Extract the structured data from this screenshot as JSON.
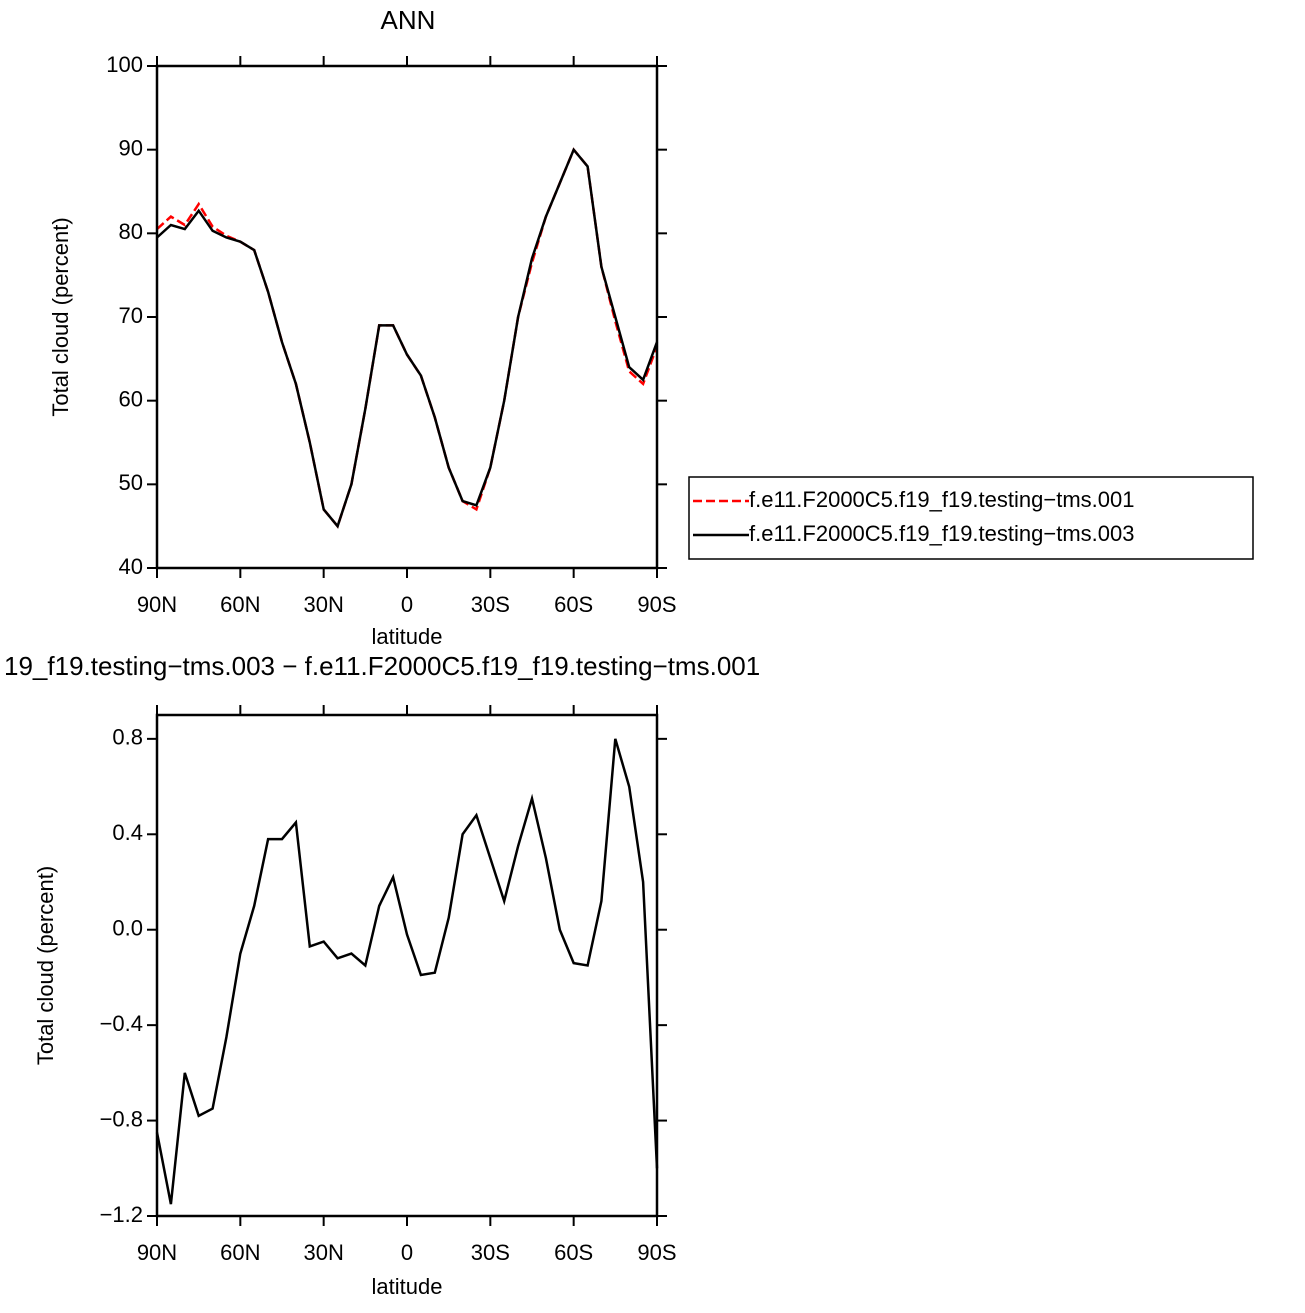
{
  "chart_data": [
    {
      "type": "line",
      "title": "ANN",
      "xlabel": "latitude",
      "ylabel": "Total cloud (percent)",
      "x": [
        90,
        85,
        80,
        75,
        70,
        65,
        60,
        55,
        50,
        45,
        40,
        35,
        30,
        25,
        20,
        15,
        10,
        5,
        0,
        -5,
        -10,
        -15,
        -20,
        -25,
        -30,
        -35,
        -40,
        -45,
        -50,
        -55,
        -60,
        -65,
        -70,
        -75,
        -80,
        -85,
        -90
      ],
      "xlim": [
        90,
        -90
      ],
      "xticks": [
        {
          "value": 90,
          "label": "90N"
        },
        {
          "value": 60,
          "label": "60N"
        },
        {
          "value": 30,
          "label": "30N"
        },
        0,
        {
          "value": -30,
          "label": "30S"
        },
        {
          "value": -60,
          "label": "60S"
        },
        {
          "value": -90,
          "label": "90S"
        }
      ],
      "ylim": [
        40,
        100
      ],
      "yticks": [
        40,
        50,
        60,
        70,
        80,
        90,
        100
      ],
      "legend": "right",
      "series": [
        {
          "name": "f.e11.F2000C5.f19_f19.testing−tms.001",
          "color": "#ff0000",
          "dash": true,
          "values": [
            80.5,
            82,
            81,
            83.5,
            80.8,
            79.7,
            79,
            78,
            73,
            67,
            62,
            55,
            47,
            45,
            50,
            59,
            69,
            69,
            65.5,
            63,
            58,
            52,
            48,
            47,
            52,
            60,
            70,
            76.5,
            82,
            86,
            90,
            88,
            76,
            69.5,
            63.5,
            62,
            66.5
          ]
        },
        {
          "name": "f.e11.F2000C5.f19_f19.testing−tms.003",
          "color": "#000000",
          "dash": false,
          "values": [
            79.5,
            81,
            80.5,
            82.7,
            80.3,
            79.5,
            79,
            78,
            73,
            67,
            62,
            55,
            47,
            45,
            50,
            59,
            69,
            69,
            65.5,
            63,
            58,
            52,
            48,
            47.5,
            52,
            60,
            70,
            77,
            82,
            86,
            90,
            88,
            76,
            70,
            64,
            62.5,
            67
          ]
        }
      ]
    },
    {
      "type": "line",
      "title": "19_f19.testing−tms.003 − f.e11.F2000C5.f19_f19.testing−tms.001",
      "xlabel": "latitude",
      "ylabel": "Total cloud (percent)",
      "x": [
        90,
        85,
        80,
        75,
        70,
        65,
        60,
        55,
        50,
        45,
        40,
        35,
        30,
        25,
        20,
        15,
        10,
        5,
        0,
        -5,
        -10,
        -15,
        -20,
        -25,
        -30,
        -35,
        -40,
        -45,
        -50,
        -55,
        -60,
        -65,
        -70,
        -75,
        -80,
        -85,
        -90
      ],
      "xlim": [
        90,
        -90
      ],
      "xticks": [
        {
          "value": 90,
          "label": "90N"
        },
        {
          "value": 60,
          "label": "60N"
        },
        {
          "value": 30,
          "label": "30N"
        },
        0,
        {
          "value": -30,
          "label": "30S"
        },
        {
          "value": -60,
          "label": "60S"
        },
        {
          "value": -90,
          "label": "90S"
        }
      ],
      "ylim": [
        -1.2,
        0.9
      ],
      "yticks": [
        {
          "value": -1.2,
          "label": "−1.2"
        },
        {
          "value": -0.8,
          "label": "−0.8"
        },
        {
          "value": -0.4,
          "label": "−0.4"
        },
        {
          "value": 0,
          "label": "0.0"
        },
        0.4,
        0.8
      ],
      "series": [
        {
          "color": "#000000",
          "dash": false,
          "values": [
            -0.85,
            -1.15,
            -0.6,
            -0.78,
            -0.75,
            -0.45,
            -0.1,
            0.1,
            0.38,
            0.38,
            0.45,
            -0.07,
            -0.05,
            -0.12,
            -0.1,
            -0.15,
            0.1,
            0.22,
            -0.02,
            -0.19,
            -0.18,
            0.05,
            0.4,
            0.48,
            0.3,
            0.12,
            0.35,
            0.55,
            0.3,
            0,
            -0.14,
            -0.15,
            0.12,
            0.8,
            0.6,
            0.2,
            -1
          ]
        }
      ]
    }
  ]
}
